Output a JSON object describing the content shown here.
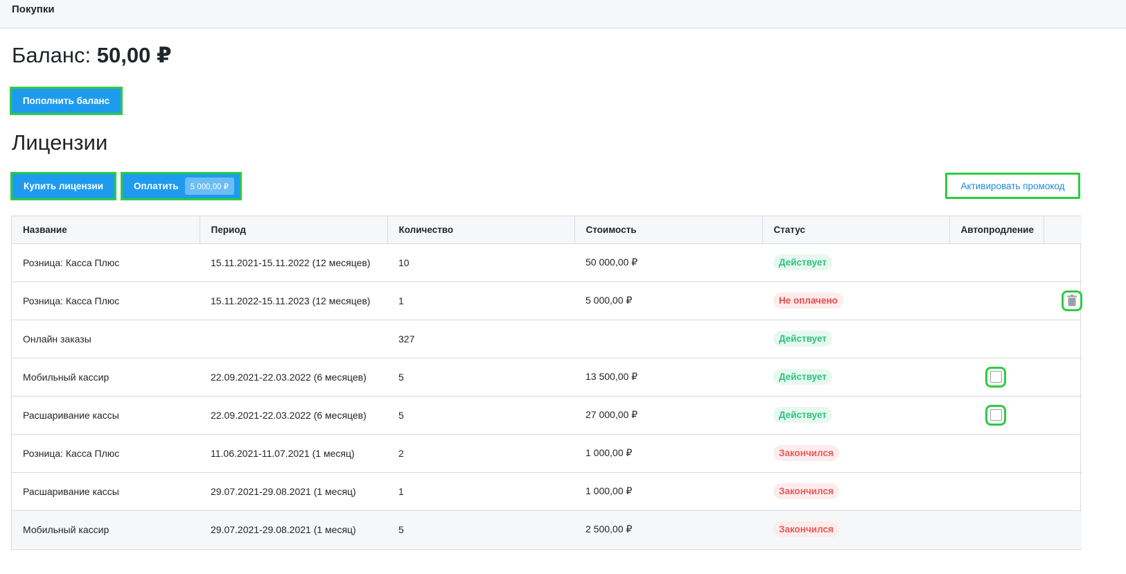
{
  "topbar": {
    "title": "Покупки"
  },
  "balance": {
    "label": "Баланс:",
    "amount": "50,00 ₽"
  },
  "buttons": {
    "topup": "Пополнить баланс",
    "buy": "Купить лицензии",
    "pay": "Оплатить",
    "pay_amount": "5 000,00 ₽",
    "promo": "Активировать промокод"
  },
  "licenses": {
    "title": "Лицензии",
    "columns": [
      "Название",
      "Период",
      "Количество",
      "Стоимость",
      "Статус",
      "Автопродление",
      ""
    ],
    "rows": [
      {
        "name": "Розница: Касса Плюс",
        "period": "15.11.2021-15.11.2022 (12 месяцев)",
        "qty": "10",
        "cost": "50 000,00 ₽",
        "status": "Действует",
        "status_kind": "active",
        "autorenew": "none",
        "action": "none"
      },
      {
        "name": "Розница: Касса Плюс",
        "period": "15.11.2022-15.11.2023 (12 месяцев)",
        "qty": "1",
        "cost": "5 000,00 ₽",
        "status": "Не оплачено",
        "status_kind": "unpaid",
        "autorenew": "none",
        "action": "trash-icon"
      },
      {
        "name": "Онлайн заказы",
        "period": "",
        "qty": "327",
        "cost": "",
        "status": "Действует",
        "status_kind": "active",
        "autorenew": "none",
        "action": "none"
      },
      {
        "name": "Мобильный кассир",
        "period": "22.09.2021-22.03.2022 (6 месяцев)",
        "qty": "5",
        "cost": "13 500,00 ₽",
        "status": "Действует",
        "status_kind": "active",
        "autorenew": "checkbox",
        "action": "none"
      },
      {
        "name": "Расшаривание кассы",
        "period": "22.09.2021-22.03.2022 (6 месяцев)",
        "qty": "5",
        "cost": "27 000,00 ₽",
        "status": "Действует",
        "status_kind": "active",
        "autorenew": "checkbox",
        "action": "none"
      },
      {
        "name": "Розница: Касса Плюс",
        "period": "11.06.2021-11.07.2021 (1 месяц)",
        "qty": "2",
        "cost": "1 000,00 ₽",
        "status": "Закончился",
        "status_kind": "ended",
        "autorenew": "none",
        "action": "none"
      },
      {
        "name": "Расшаривание кассы",
        "period": "29.07.2021-29.08.2021 (1 месяц)",
        "qty": "1",
        "cost": "1 000,00 ₽",
        "status": "Закончился",
        "status_kind": "ended",
        "autorenew": "none",
        "action": "none"
      },
      {
        "name": "Мобильный кассир",
        "period": "29.07.2021-29.08.2021 (1 месяц)",
        "qty": "5",
        "cost": "2 500,00 ₽",
        "status": "Закончился",
        "status_kind": "ended",
        "autorenew": "none",
        "action": "none"
      }
    ]
  },
  "colors": {
    "primary": "#1e9bef",
    "active_text": "#2ec27e",
    "danger_text": "#e84a4a",
    "highlight": "#2ecc40"
  }
}
